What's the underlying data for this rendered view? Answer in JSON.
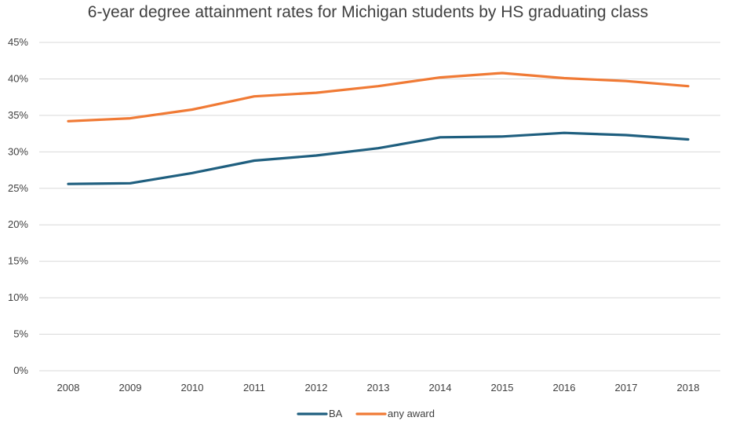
{
  "chart_data": {
    "type": "line",
    "title": "6-year degree attainment rates for Michigan students by HS graduating class",
    "xlabel": "",
    "ylabel": "",
    "categories": [
      "2008",
      "2009",
      "2010",
      "2011",
      "2012",
      "2013",
      "2014",
      "2015",
      "2016",
      "2017",
      "2018"
    ],
    "y_ticks": [
      "0%",
      "5%",
      "10%",
      "15%",
      "20%",
      "25%",
      "30%",
      "35%",
      "40%",
      "45%"
    ],
    "ylim": [
      0,
      45
    ],
    "grid": true,
    "legend_position": "bottom",
    "series": [
      {
        "name": "BA",
        "color": "#1f5f7f",
        "values": [
          25.6,
          25.7,
          27.1,
          28.8,
          29.5,
          30.5,
          32.0,
          32.1,
          32.6,
          32.3,
          31.7
        ]
      },
      {
        "name": "any award",
        "color": "#f07a35",
        "values": [
          34.2,
          34.6,
          35.8,
          37.6,
          38.1,
          39.0,
          40.2,
          40.8,
          40.1,
          39.7,
          39.0
        ]
      }
    ]
  }
}
